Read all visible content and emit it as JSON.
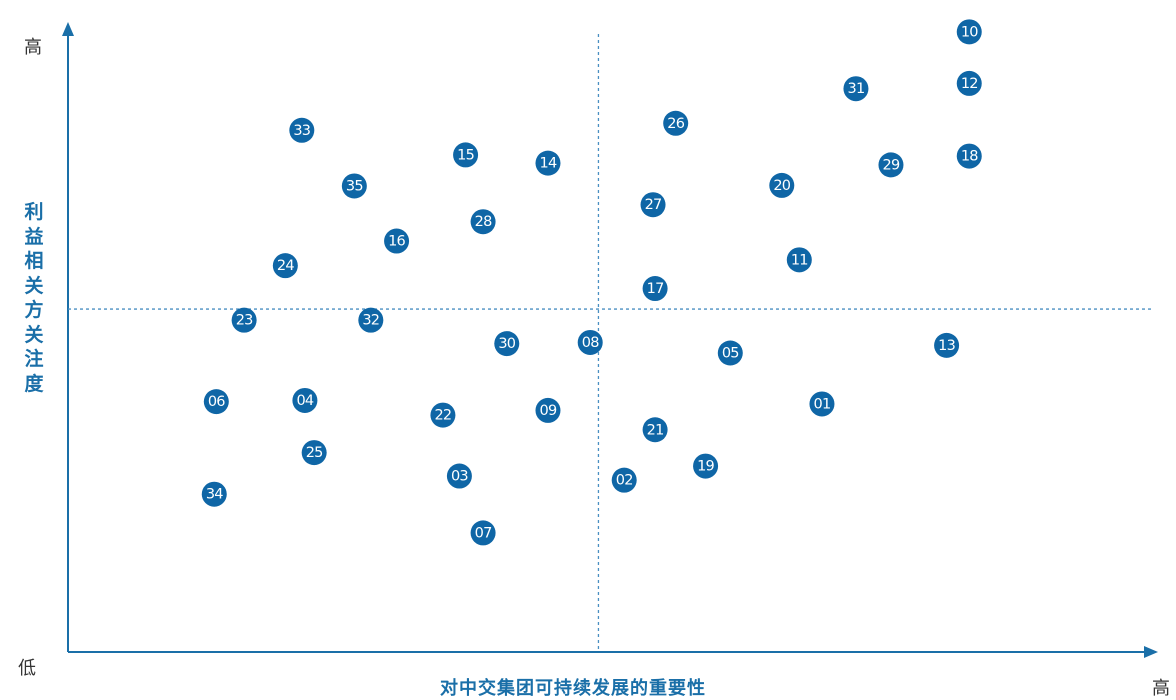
{
  "labels": {
    "y_high": "高",
    "low": "低",
    "x_high": "高",
    "x_title": "对中交集团可持续发展的重要性",
    "y_title": "利益相关方关注度"
  },
  "colors": {
    "marker": "#0f66a6",
    "axis": "#1a6fa8",
    "divider": "#4a8fc2"
  },
  "chart_data": {
    "type": "scatter",
    "title": "",
    "xlabel": "对中交集团可持续发展的重要性",
    "ylabel": "利益相关方关注度",
    "xlim": [
      0,
      100
    ],
    "ylim": [
      0,
      100
    ],
    "grid": false,
    "quadrant_dividers": {
      "x": 51.5,
      "y": 51.7
    },
    "points": [
      {
        "label": "01",
        "x": 73.2,
        "y": 35.5
      },
      {
        "label": "02",
        "x": 54.0,
        "y": 22.5
      },
      {
        "label": "03",
        "x": 38.0,
        "y": 23.2
      },
      {
        "label": "04",
        "x": 23.0,
        "y": 36.1
      },
      {
        "label": "05",
        "x": 64.3,
        "y": 44.2
      },
      {
        "label": "06",
        "x": 14.4,
        "y": 35.9
      },
      {
        "label": "07",
        "x": 40.3,
        "y": 13.5
      },
      {
        "label": "08",
        "x": 50.7,
        "y": 46.0
      },
      {
        "label": "09",
        "x": 46.6,
        "y": 34.4
      },
      {
        "label": "10",
        "x": 87.5,
        "y": 99.0
      },
      {
        "label": "11",
        "x": 71.0,
        "y": 60.1
      },
      {
        "label": "12",
        "x": 87.5,
        "y": 90.2
      },
      {
        "label": "13",
        "x": 85.3,
        "y": 45.5
      },
      {
        "label": "14",
        "x": 46.6,
        "y": 76.6
      },
      {
        "label": "15",
        "x": 38.6,
        "y": 78.0
      },
      {
        "label": "16",
        "x": 31.9,
        "y": 63.3
      },
      {
        "label": "17",
        "x": 57.0,
        "y": 55.2
      },
      {
        "label": "18",
        "x": 87.5,
        "y": 77.8
      },
      {
        "label": "19",
        "x": 61.9,
        "y": 24.9
      },
      {
        "label": "20",
        "x": 69.3,
        "y": 72.8
      },
      {
        "label": "21",
        "x": 57.0,
        "y": 31.1
      },
      {
        "label": "22",
        "x": 36.4,
        "y": 33.6
      },
      {
        "label": "23",
        "x": 17.1,
        "y": 49.8
      },
      {
        "label": "24",
        "x": 21.1,
        "y": 59.1
      },
      {
        "label": "25",
        "x": 23.9,
        "y": 27.2
      },
      {
        "label": "26",
        "x": 59.0,
        "y": 83.4
      },
      {
        "label": "27",
        "x": 56.8,
        "y": 69.5
      },
      {
        "label": "28",
        "x": 40.3,
        "y": 66.6
      },
      {
        "label": "29",
        "x": 79.9,
        "y": 76.3
      },
      {
        "label": "30",
        "x": 42.6,
        "y": 45.8
      },
      {
        "label": "31",
        "x": 76.5,
        "y": 89.3
      },
      {
        "label": "32",
        "x": 29.4,
        "y": 49.8
      },
      {
        "label": "33",
        "x": 22.7,
        "y": 82.2
      },
      {
        "label": "34",
        "x": 14.2,
        "y": 20.1
      },
      {
        "label": "35",
        "x": 27.8,
        "y": 72.7
      }
    ]
  }
}
